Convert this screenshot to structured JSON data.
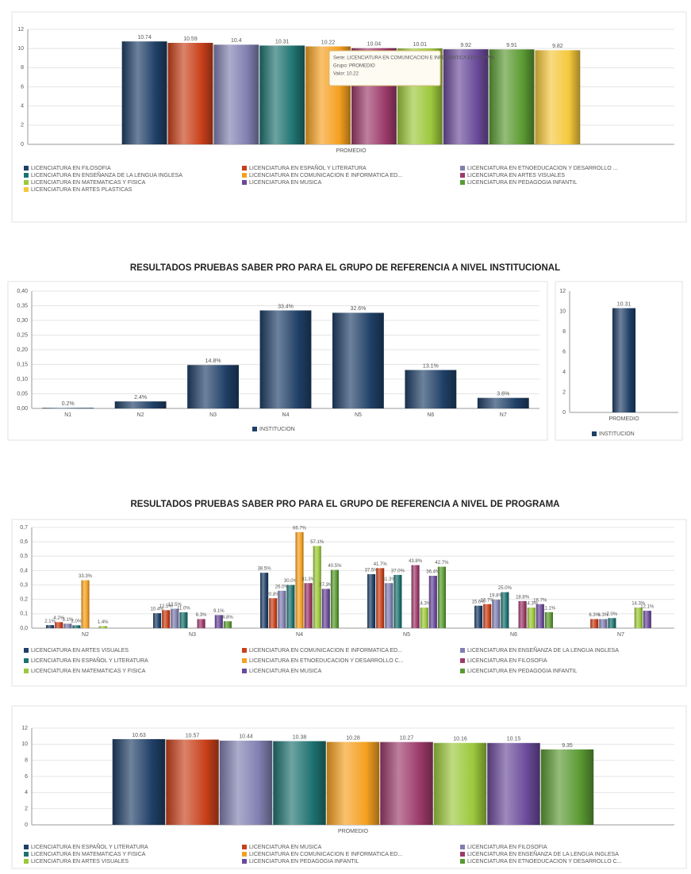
{
  "chart_data": [
    {
      "type": "bar",
      "categories": [
        "PROMEDIO"
      ],
      "ylim": [
        0,
        12
      ],
      "yticks": [
        0,
        2,
        4,
        6,
        8,
        10,
        12
      ],
      "grid": true,
      "tooltip": [
        "Serie: LICENCIATURA EN COMUNICACION E INFORMATICA EDUCATIVA",
        "Grupo: PROMEDIO",
        "Valor: 10.22"
      ],
      "series": [
        {
          "name": "LICENCIATURA EN FILOSOFIA",
          "color": "#1f3f66",
          "values": [
            10.74
          ]
        },
        {
          "name": "LICENCIATURA EN ESPAÑOL Y LITERATURA",
          "color": "#c8401a",
          "values": [
            10.59
          ]
        },
        {
          "name": "LICENCIATURA EN ETNOEDUCACION Y DESARROLLO ...",
          "color": "#7f7fb0",
          "values": [
            10.4
          ]
        },
        {
          "name": "LICENCIATURA EN ENSEÑANZA DE LA LENGUA INGLESA",
          "color": "#1e7270",
          "values": [
            10.31
          ]
        },
        {
          "name": "LICENCIATURA EN COMUNICACION E INFORMATICA ED...",
          "color": "#f5a020",
          "values": [
            10.22
          ]
        },
        {
          "name": "LICENCIATURA EN ARTES VISUALES",
          "color": "#9c3a6a",
          "values": [
            10.04
          ]
        },
        {
          "name": "LICENCIATURA EN MATEMATICAS Y FISICA",
          "color": "#9cc83c",
          "values": [
            10.01
          ]
        },
        {
          "name": "LICENCIATURA EN MUSICA",
          "color": "#6a4a9a",
          "values": [
            9.92
          ]
        },
        {
          "name": "LICENCIATURA EN PEDAGOGIA INFANTIL",
          "color": "#5a9a32",
          "values": [
            9.91
          ]
        },
        {
          "name": "LICENCIATURA EN ARTES PLASTICAS",
          "color": "#f5c83c",
          "values": [
            9.82
          ]
        }
      ]
    },
    {
      "type": "bar",
      "title": "RESULTADOS PRUEBAS SABER PRO PARA EL GRUPO DE REFERENCIA A NIVEL INSTITUCIONAL",
      "categories": [
        "N1",
        "N2",
        "N3",
        "N4",
        "N5",
        "N6",
        "N7"
      ],
      "ylim": [
        0,
        0.4
      ],
      "grid": true,
      "yticks": [
        {
          "value": 0,
          "label": "0,00"
        },
        {
          "value": 0.05,
          "label": "0,05"
        },
        {
          "value": 0.1,
          "label": "0,10"
        },
        {
          "value": 0.15,
          "label": "0,15"
        },
        {
          "value": 0.2,
          "label": "0,20"
        },
        {
          "value": 0.25,
          "label": "0,25"
        },
        {
          "value": 0.3,
          "label": "0,30"
        },
        {
          "value": 0.35,
          "label": "0,35"
        },
        {
          "value": 0.4,
          "label": "0,40"
        }
      ],
      "series": [
        {
          "name": "INSTITUCION",
          "color": "#1f3f66",
          "values": [
            0.002,
            0.024,
            0.148,
            0.334,
            0.326,
            0.131,
            0.036
          ],
          "value_labels": [
            "0.2%",
            "2.4%",
            "14.8%",
            "33.4%",
            "32.6%",
            "13.1%",
            "3.6%"
          ]
        }
      ]
    },
    {
      "type": "bar",
      "categories": [
        "PROMEDIO"
      ],
      "ylim": [
        0,
        12
      ],
      "yticks": [
        0,
        2,
        4,
        6,
        8,
        10,
        12
      ],
      "grid": false,
      "series": [
        {
          "name": "INSTITUCION",
          "color": "#1f3f66",
          "values": [
            10.31
          ]
        }
      ]
    },
    {
      "type": "bar",
      "title": "RESULTADOS PRUEBAS SABER PRO PARA EL GRUPO DE REFERENCIA A NIVEL DE PROGRAMA",
      "categories": [
        "N2",
        "N3",
        "N4",
        "N5",
        "N6",
        "N7"
      ],
      "ylim": [
        0,
        0.7
      ],
      "grid": true,
      "yticks": [
        {
          "value": 0,
          "label": "0,0"
        },
        {
          "value": 0.1,
          "label": "0,1"
        },
        {
          "value": 0.2,
          "label": "0,2"
        },
        {
          "value": 0.3,
          "label": "0,3"
        },
        {
          "value": 0.4,
          "label": "0,4"
        },
        {
          "value": 0.5,
          "label": "0,5"
        },
        {
          "value": 0.6,
          "label": "0,6"
        },
        {
          "value": 0.7,
          "label": "0,7"
        }
      ],
      "series": [
        {
          "name": "LICENCIATURA EN ARTES VISUALES",
          "color": "#1f3f66",
          "values": [
            0.021,
            0.104,
            0.385,
            0.375,
            0.156,
            null
          ],
          "value_labels": [
            "2.1%",
            "10.4%",
            "38.5%",
            "37.5%",
            "15.6%",
            null
          ]
        },
        {
          "name": "LICENCIATURA EN COMUNICACION E INFORMATICA ED...",
          "color": "#c8401a",
          "values": [
            0.042,
            0.125,
            0.208,
            0.417,
            0.167,
            0.063
          ],
          "value_labels": [
            "4.2%",
            "12.5%",
            "20.8%",
            "41.7%",
            "16.7%",
            "6.3%"
          ]
        },
        {
          "name": "LICENCIATURA EN ENSEÑANZA DE LA LENGUA INGLESA",
          "color": "#7f7fb0",
          "values": [
            0.031,
            0.135,
            0.26,
            0.313,
            0.198,
            0.063
          ],
          "value_labels": [
            "3.1%",
            "13.5%",
            "26.0%",
            "31.3%",
            "19.8%",
            "6.3%"
          ]
        },
        {
          "name": "LICENCIATURA EN ESPAÑOL Y LITERATURA",
          "color": "#1e7270",
          "values": [
            0.02,
            0.11,
            0.3,
            0.37,
            0.25,
            0.07
          ],
          "value_labels": [
            "2.0%",
            "11.0%",
            "30.0%",
            "37.0%",
            "25.0%",
            "7.0%"
          ]
        },
        {
          "name": "LICENCIATURA EN ETNOEDUCACION Y DESARROLLO C...",
          "color": "#f5a020",
          "values": [
            0.333,
            null,
            0.667,
            null,
            null,
            null
          ],
          "value_labels": [
            "33.3%",
            null,
            "66.7%",
            null,
            null,
            null
          ]
        },
        {
          "name": "LICENCIATURA EN FILOSOFIA",
          "color": "#9c3a6a",
          "values": [
            null,
            0.063,
            0.313,
            0.438,
            0.188,
            null
          ],
          "value_labels": [
            null,
            "6.3%",
            "31.3%",
            "43.8%",
            "18.8%",
            null
          ]
        },
        {
          "name": "LICENCIATURA EN MATEMATICAS Y FISICA",
          "color": "#9cc83c",
          "values": [
            0.014,
            null,
            0.571,
            0.143,
            0.143,
            0.143
          ],
          "value_labels": [
            "1.4%",
            null,
            "57.1%",
            "14.3%",
            "14.3%",
            "14.3%"
          ]
        },
        {
          "name": "LICENCIATURA EN MUSICA",
          "color": "#6a4a9a",
          "values": [
            null,
            0.091,
            0.273,
            0.364,
            0.167,
            0.121
          ],
          "value_labels": [
            null,
            "9.1%",
            "27.3%",
            "36.4%",
            "16.7%",
            "12.1%"
          ]
        },
        {
          "name": "LICENCIATURA EN PEDAGOGIA INFANTIL",
          "color": "#5a9a32",
          "values": [
            null,
            0.048,
            0.405,
            0.427,
            0.111,
            null
          ],
          "value_labels": [
            null,
            "4.8%",
            "40.5%",
            "42.7%",
            "11.1%",
            null
          ]
        }
      ]
    },
    {
      "type": "bar",
      "categories": [
        "PROMEDIO"
      ],
      "ylim": [
        0,
        12
      ],
      "yticks": [
        0,
        2,
        4,
        6,
        8,
        10,
        12
      ],
      "grid": true,
      "series": [
        {
          "name": "LICENCIATURA EN ESPAÑOL Y LITERATURA",
          "color": "#1f3f66",
          "values": [
            10.63
          ]
        },
        {
          "name": "LICENCIATURA EN MUSICA",
          "color": "#c8401a",
          "values": [
            10.57
          ]
        },
        {
          "name": "LICENCIATURA EN FILOSOFIA",
          "color": "#7f7fb0",
          "values": [
            10.44
          ]
        },
        {
          "name": "LICENCIATURA EN MATEMATICAS Y FISICA",
          "color": "#1e7270",
          "values": [
            10.38
          ]
        },
        {
          "name": "LICENCIATURA EN COMUNICACION E INFORMATICA ED...",
          "color": "#f5a020",
          "values": [
            10.28
          ]
        },
        {
          "name": "LICENCIATURA EN ENSEÑANZA DE LA LENGUA INGLESA",
          "color": "#9c3a6a",
          "values": [
            10.27
          ]
        },
        {
          "name": "LICENCIATURA EN ARTES VISUALES",
          "color": "#9cc83c",
          "values": [
            10.16
          ]
        },
        {
          "name": "LICENCIATURA EN PEDAGOGIA INFANTIL",
          "color": "#6a4a9a",
          "values": [
            10.15
          ]
        },
        {
          "name": "LICENCIATURA EN ETNOEDUCACION Y DESARROLLO C...",
          "color": "#5a9a32",
          "values": [
            9.35
          ]
        }
      ]
    }
  ]
}
